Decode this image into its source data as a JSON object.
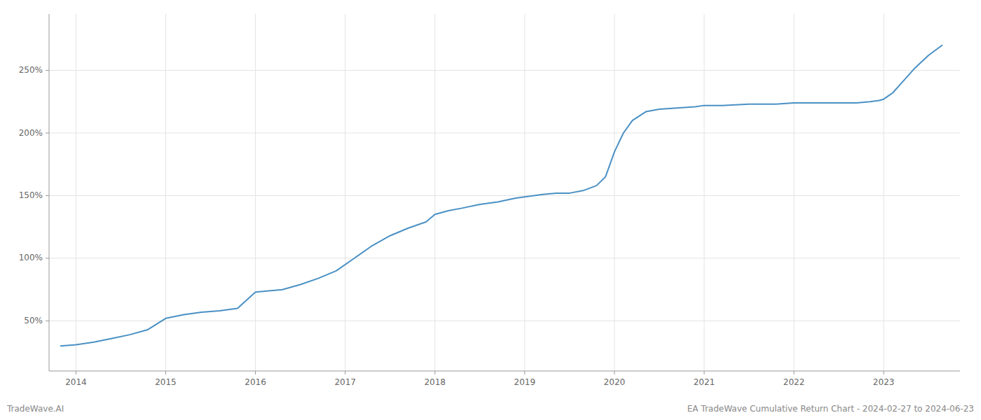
{
  "chart_data": {
    "type": "line",
    "title": "EA TradeWave Cumulative Return Chart - 2024-02-27 to 2024-06-23",
    "annotations": [
      "TradeWave.AI"
    ],
    "x": [
      2013.83,
      2014.0,
      2014.2,
      2014.4,
      2014.6,
      2014.8,
      2015.0,
      2015.2,
      2015.4,
      2015.6,
      2015.8,
      2016.0,
      2016.15,
      2016.3,
      2016.5,
      2016.7,
      2016.9,
      2017.1,
      2017.3,
      2017.5,
      2017.7,
      2017.9,
      2018.0,
      2018.15,
      2018.3,
      2018.5,
      2018.7,
      2018.9,
      2019.0,
      2019.1,
      2019.2,
      2019.35,
      2019.5,
      2019.65,
      2019.8,
      2019.9,
      2020.0,
      2020.1,
      2020.2,
      2020.35,
      2020.5,
      2020.7,
      2020.9,
      2021.0,
      2021.2,
      2021.5,
      2021.8,
      2022.0,
      2022.2,
      2022.5,
      2022.7,
      2022.85,
      2022.95,
      2023.0,
      2023.1,
      2023.2,
      2023.35,
      2023.5,
      2023.65
    ],
    "values": [
      30,
      31,
      33,
      36,
      39,
      43,
      52,
      55,
      57,
      58,
      60,
      73,
      74,
      75,
      79,
      84,
      90,
      100,
      110,
      118,
      124,
      129,
      135,
      138,
      140,
      143,
      145,
      148,
      149,
      150,
      151,
      152,
      152,
      154,
      158,
      165,
      185,
      200,
      210,
      217,
      219,
      220,
      221,
      222,
      222,
      223,
      223,
      224,
      224,
      224,
      224,
      225,
      226,
      227,
      232,
      240,
      252,
      262,
      270
    ],
    "color": "#4a90c4",
    "xlim": [
      2013.7,
      2023.85
    ],
    "ylim": [
      10,
      295
    ],
    "xticks": [
      2014,
      2015,
      2016,
      2017,
      2018,
      2019,
      2020,
      2021,
      2022,
      2023
    ],
    "yticks": [
      {
        "value": 50,
        "label": "50%"
      },
      {
        "value": 100,
        "label": "100%"
      },
      {
        "value": 150,
        "label": "150%"
      },
      {
        "value": 200,
        "label": "200%"
      },
      {
        "value": 250,
        "label": "250%"
      }
    ],
    "grid": true
  }
}
